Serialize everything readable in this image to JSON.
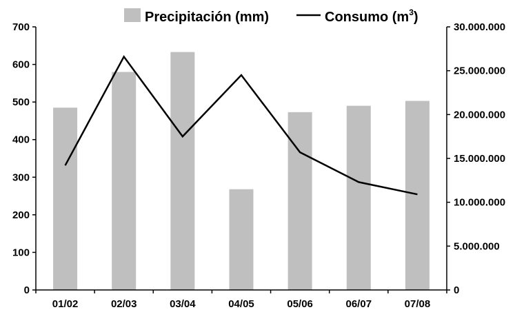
{
  "chart_data": {
    "type": "bar",
    "categories": [
      "01/02",
      "02/03",
      "03/04",
      "04/05",
      "05/06",
      "06/07",
      "07/08"
    ],
    "series": [
      {
        "name": "Precipitación (mm)",
        "kind": "bar",
        "axis": "left",
        "color": "#bfbfbf",
        "values": [
          485,
          580,
          633,
          268,
          473,
          490,
          503
        ]
      },
      {
        "name": "Consumo (m",
        "kind": "line",
        "axis": "right",
        "color": "#000000",
        "values": [
          14200000,
          26600000,
          17500000,
          24500000,
          15700000,
          12300000,
          10900000
        ]
      }
    ],
    "legend_sup": "3",
    "legend_close": ")",
    "y_left": {
      "ylim": [
        0,
        700
      ],
      "ticks": [
        0,
        100,
        200,
        300,
        400,
        500,
        600,
        700
      ],
      "tick_labels": [
        "0",
        "100",
        "200",
        "300",
        "400",
        "500",
        "600",
        "700"
      ]
    },
    "y_right": {
      "ylim": [
        0,
        30000000
      ],
      "ticks": [
        0,
        5000000,
        10000000,
        15000000,
        20000000,
        25000000,
        30000000
      ],
      "tick_labels": [
        "0",
        "5.000.000",
        "10.000.000",
        "15.000.000",
        "20.000.000",
        "25.000.000",
        "30.000.000"
      ]
    },
    "legend_position": "top",
    "grid": false
  }
}
